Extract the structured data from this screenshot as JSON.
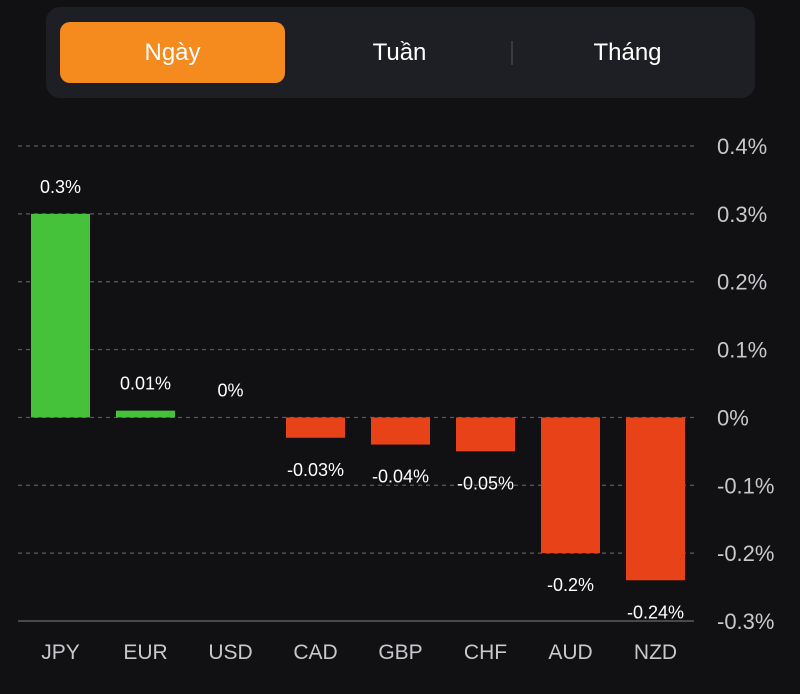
{
  "tabs": [
    {
      "label": "Ngày",
      "active": true
    },
    {
      "label": "Tuần",
      "active": false
    },
    {
      "label": "Tháng",
      "active": false
    }
  ],
  "colors": {
    "accent": "#f58a1f",
    "positive": "#46c23a",
    "negative": "#e84218",
    "background": "#111114",
    "tabbar": "#1e1f24",
    "grid": "#5a5b60",
    "text": "#ffffff",
    "axis_text": "#c8c8cc"
  },
  "chart_data": {
    "type": "bar",
    "categories": [
      "JPY",
      "EUR",
      "USD",
      "CAD",
      "GBP",
      "CHF",
      "AUD",
      "NZD"
    ],
    "values": [
      0.3,
      0.01,
      0,
      -0.03,
      -0.04,
      -0.05,
      -0.2,
      -0.24
    ],
    "value_labels": [
      "0.3%",
      "0.01%",
      "0%",
      "-0.03%",
      "-0.04%",
      "-0.05%",
      "-0.2%",
      "-0.24%"
    ],
    "y_ticks": [
      0.4,
      0.3,
      0.2,
      0.1,
      0,
      -0.1,
      -0.2,
      -0.3
    ],
    "y_tick_labels": [
      "0.4%",
      "0.3%",
      "0.2%",
      "0.1%",
      "0%",
      "-0.1%",
      "-0.2%",
      "-0.3%"
    ],
    "ylim": [
      -0.3,
      0.4
    ],
    "grid": true,
    "y_axis_position": "right",
    "title": "",
    "xlabel": "",
    "ylabel": ""
  }
}
